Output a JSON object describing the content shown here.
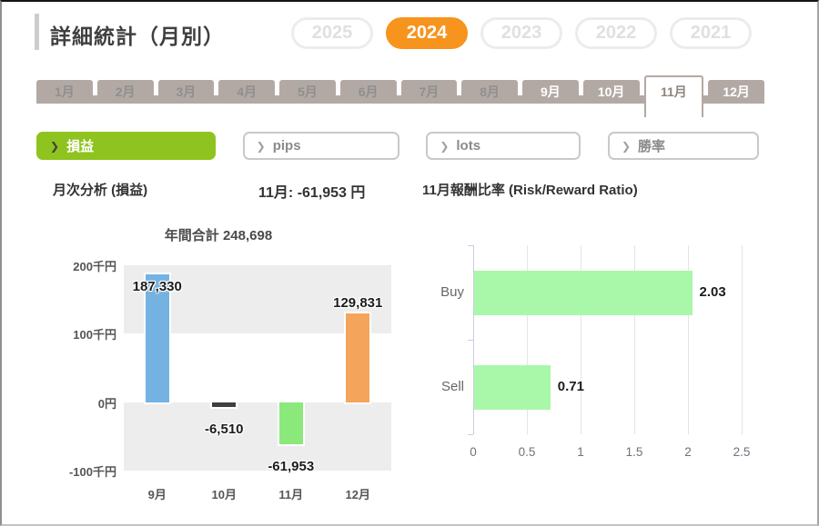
{
  "header": {
    "title": "詳細統計（月別）",
    "years": [
      {
        "label": "2025",
        "selected": false
      },
      {
        "label": "2024",
        "selected": true
      },
      {
        "label": "2023",
        "selected": false
      },
      {
        "label": "2022",
        "selected": false
      },
      {
        "label": "2021",
        "selected": false
      }
    ],
    "selected_year_color": "#f7941e"
  },
  "month_tabs": [
    {
      "label": "1月",
      "has_data": false,
      "selected": false
    },
    {
      "label": "2月",
      "has_data": false,
      "selected": false
    },
    {
      "label": "3月",
      "has_data": false,
      "selected": false
    },
    {
      "label": "4月",
      "has_data": false,
      "selected": false
    },
    {
      "label": "5月",
      "has_data": false,
      "selected": false
    },
    {
      "label": "6月",
      "has_data": false,
      "selected": false
    },
    {
      "label": "7月",
      "has_data": false,
      "selected": false
    },
    {
      "label": "8月",
      "has_data": false,
      "selected": false
    },
    {
      "label": "9月",
      "has_data": true,
      "selected": false
    },
    {
      "label": "10月",
      "has_data": true,
      "selected": false
    },
    {
      "label": "11月",
      "has_data": true,
      "selected": true
    },
    {
      "label": "12月",
      "has_data": true,
      "selected": false
    }
  ],
  "metric_buttons": [
    {
      "label": "損益",
      "chevron": "❯",
      "selected": true
    },
    {
      "label": "pips",
      "chevron": "❯",
      "selected": false
    },
    {
      "label": "lots",
      "chevron": "❯",
      "selected": false
    },
    {
      "label": "勝率",
      "chevron": "❯",
      "selected": false
    }
  ],
  "summary": {
    "left_title": "月次分析 (損益)",
    "selected_month_value": "11月: -61,953 円",
    "right_title": "11月報酬比率 (Risk/Reward Ratio)"
  },
  "chart_data": [
    {
      "type": "bar",
      "title": "年間合計 248,698",
      "categories": [
        "9月",
        "10月",
        "11月",
        "12月"
      ],
      "values": [
        187330,
        -6510,
        -61953,
        129831
      ],
      "value_labels": [
        "187,330",
        "-6,510",
        "-61,953",
        "129,831"
      ],
      "label_placement": [
        "inside-top",
        "below",
        "below",
        "above"
      ],
      "bar_colors": [
        "#74b2e2",
        "#3f3f3f",
        "#8be87b",
        "#f5a45c"
      ],
      "y_ticks": [
        "200千円",
        "100千円",
        "0円",
        "-100千円"
      ],
      "ylim": [
        -100000,
        200000
      ],
      "band_color": "#ededed",
      "grid": "alternating-bands"
    },
    {
      "type": "bar-horizontal",
      "title": "11月報酬比率 (Risk/Reward Ratio)",
      "categories": [
        "Buy",
        "Sell"
      ],
      "values": [
        2.03,
        0.71
      ],
      "value_labels": [
        "2.03",
        "0.71"
      ],
      "bar_color": "#a9f7a9",
      "x_ticks": [
        "0",
        "0.5",
        "1",
        "1.5",
        "2",
        "2.5"
      ],
      "xlim": [
        0,
        2.5
      ],
      "grid": true
    }
  ]
}
